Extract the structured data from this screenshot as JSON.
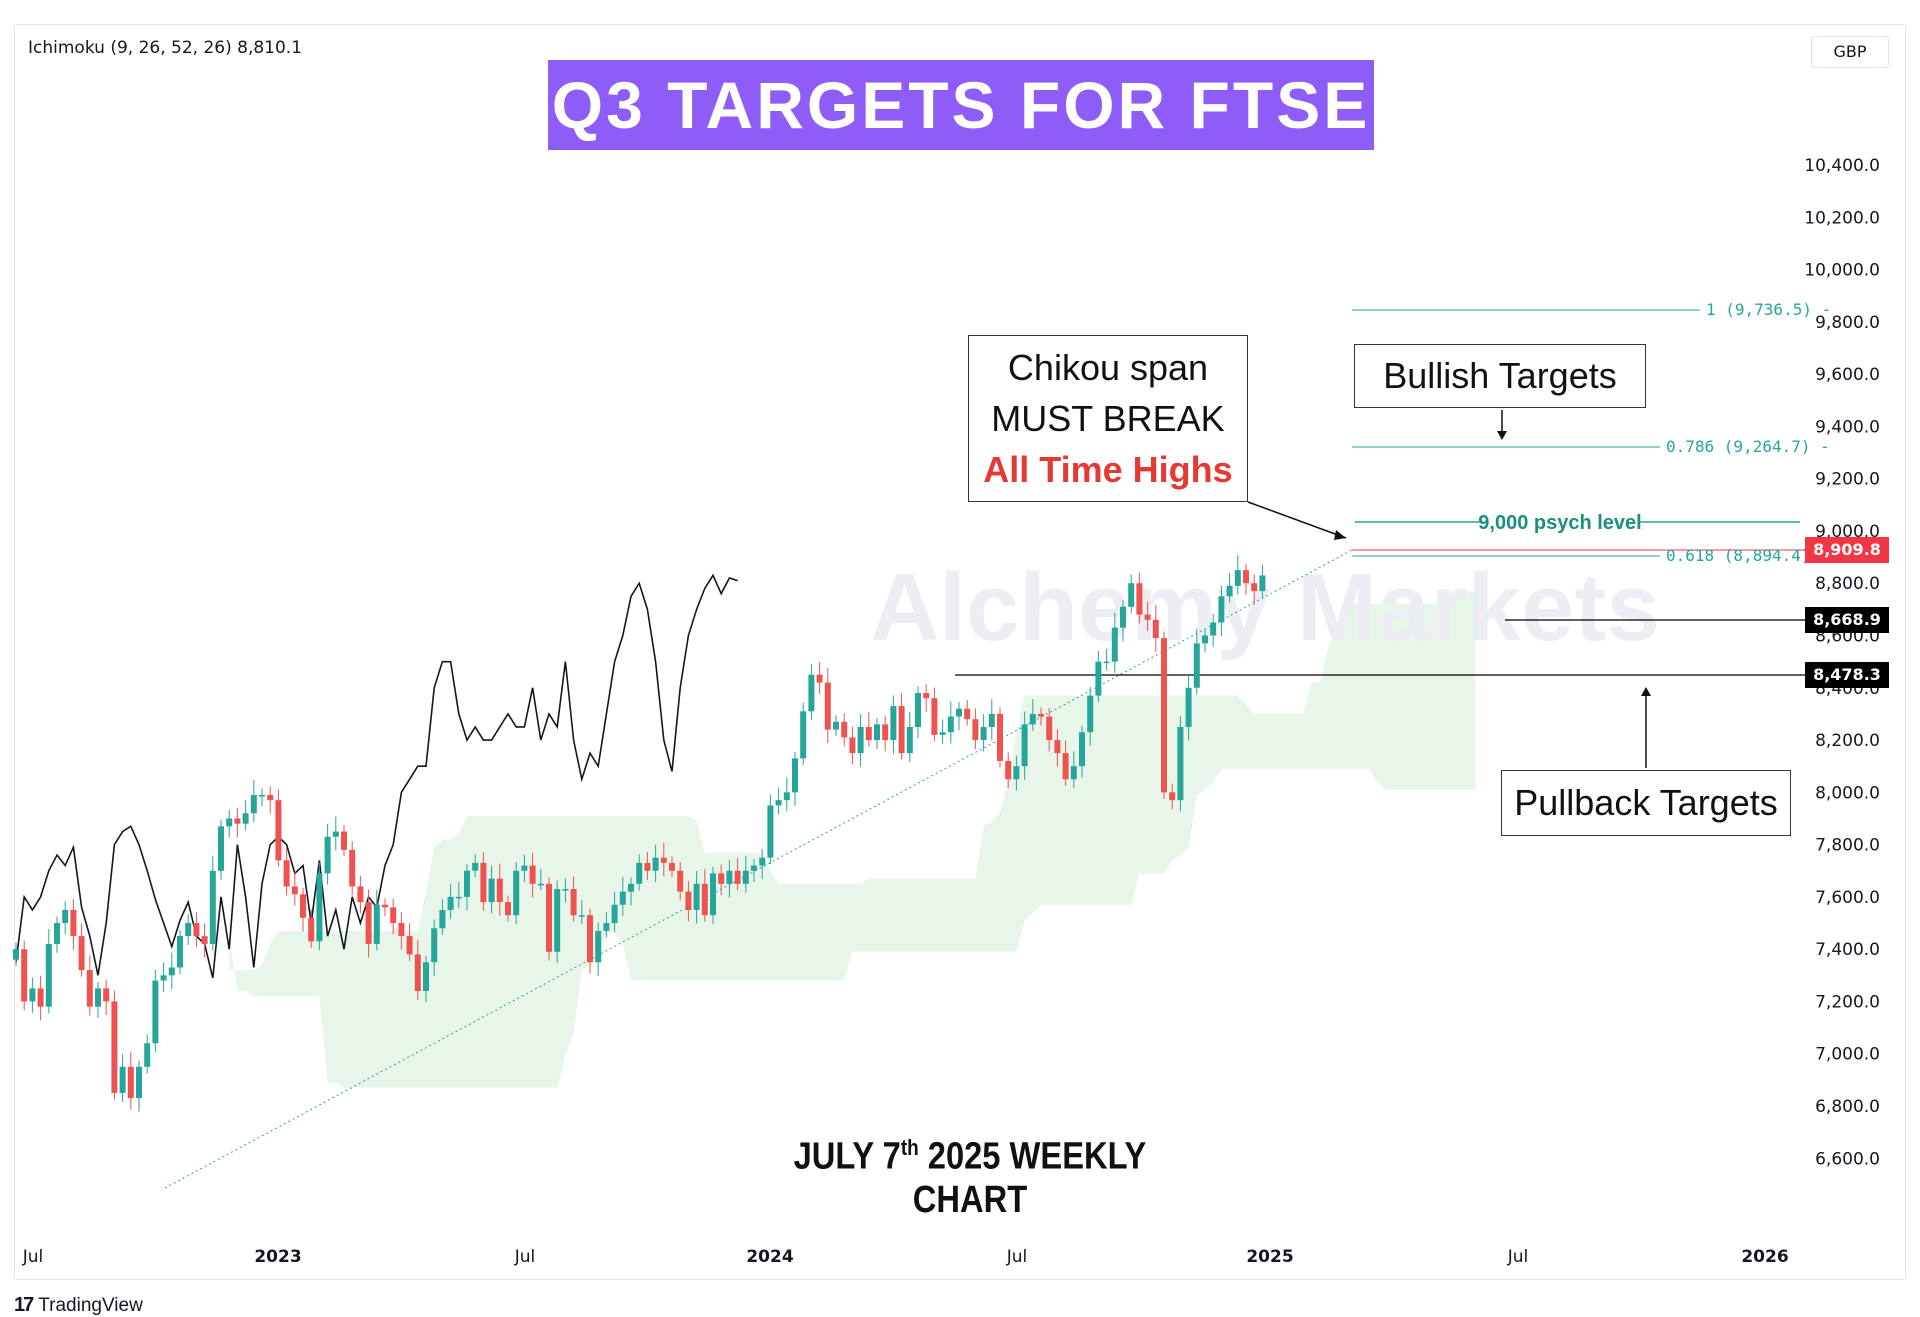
{
  "title": "Q3 TARGETS FOR FTSE",
  "subtitle_main": "JULY 7",
  "subtitle_sup": "th",
  "subtitle_rest": " 2025 WEEKLY CHART",
  "indicator_label": "Ichimoku (9, 26, 52, 26)  8,810.1",
  "currency": "GBP",
  "watermark": "Alchemy Markets",
  "brand": "TradingView",
  "annotations": {
    "chikou_line1": "Chikou span",
    "chikou_line2": "MUST BREAK",
    "chikou_line3": "All Time Highs",
    "bullish": "Bullish Targets",
    "pullback": "Pullback Targets",
    "psych": "9,000 psych level"
  },
  "price_tags": {
    "high": "8,909.8",
    "level1": "8,668.9",
    "level2": "8,478.3"
  },
  "colors": {
    "up": "#26a69a",
    "down": "#ef5350",
    "banner": "#8e5cf7",
    "fib": "#26a69a",
    "cloud_up": "#e8f5e9",
    "cloud_down": "#fdecea"
  },
  "chart_data": {
    "type": "candlestick",
    "instrument": "FTSE",
    "timeframe": "Weekly",
    "ylim": [
      6500,
      10600
    ],
    "y_ticks": [
      "6,600.0",
      "6,800.0",
      "7,000.0",
      "7,200.0",
      "7,400.0",
      "7,600.0",
      "7,800.0",
      "8,000.0",
      "8,200.0",
      "8,400.0",
      "8,600.0",
      "8,800.0",
      "9,000.0",
      "9,200.0",
      "9,400.0",
      "9,600.0",
      "9,800.0",
      "10,000.0",
      "10,200.0",
      "10,400.0"
    ],
    "x_ticks": [
      "Jul",
      "2023",
      "Jul",
      "2024",
      "Jul",
      "2025",
      "Jul",
      "2026"
    ],
    "fib_levels": [
      {
        "label": "1 (9,736.5)",
        "value": 9736.5
      },
      {
        "label": "0.786 (9,264.7)",
        "value": 9264.7
      },
      {
        "label": "0.618 (8,894.4)",
        "value": 8894.4
      }
    ],
    "horizontal_levels": [
      {
        "label": "9,000 psych level",
        "value": 9000
      },
      {
        "label": "8,909.8",
        "value": 8909.8
      },
      {
        "label": "8,668.9",
        "value": 8668.9
      },
      {
        "label": "8,478.3",
        "value": 8478.3
      }
    ],
    "closes": [
      7400,
      7200,
      7250,
      7180,
      7420,
      7500,
      7550,
      7450,
      7320,
      7180,
      7250,
      7200,
      6850,
      6950,
      6830,
      6950,
      7040,
      7280,
      7300,
      7330,
      7450,
      7500,
      7450,
      7420,
      7700,
      7870,
      7900,
      7880,
      7920,
      7990,
      7990,
      7970,
      7740,
      7640,
      7610,
      7520,
      7430,
      7690,
      7830,
      7850,
      7780,
      7640,
      7580,
      7420,
      7570,
      7560,
      7500,
      7450,
      7380,
      7240,
      7350,
      7480,
      7550,
      7600,
      7600,
      7700,
      7730,
      7580,
      7670,
      7580,
      7530,
      7700,
      7720,
      7650,
      7650,
      7390,
      7630,
      7630,
      7530,
      7530,
      7350,
      7470,
      7500,
      7570,
      7620,
      7650,
      7730,
      7700,
      7750,
      7730,
      7700,
      7620,
      7550,
      7650,
      7530,
      7690,
      7650,
      7700,
      7650,
      7700,
      7720,
      7750,
      7950,
      7970,
      8000,
      8130,
      8310,
      8450,
      8420,
      8240,
      8270,
      8210,
      8150,
      8250,
      8200,
      8260,
      8200,
      8330,
      8150,
      8250,
      8380,
      8360,
      8220,
      8230,
      8290,
      8320,
      8280,
      8200,
      8250,
      8300,
      8120,
      8050,
      8100,
      8260,
      8300,
      8290,
      8200,
      8150,
      8050,
      8100,
      8230,
      8370,
      8500,
      8500,
      8630,
      8710,
      8800,
      8680,
      8660,
      8590,
      8000,
      7970,
      8250,
      8400,
      8570,
      8600,
      8650,
      8750,
      8790,
      8850,
      8800,
      8770,
      8830
    ],
    "chikou": [
      7350,
      7600,
      7550,
      7600,
      7700,
      7760,
      7720,
      7790,
      7560,
      7450,
      7300,
      7500,
      7800,
      7850,
      7870,
      7800,
      7700,
      7590,
      7500,
      7410,
      7510,
      7580,
      7450,
      7420,
      7290,
      7600,
      7400,
      7800,
      7600,
      7330,
      7650,
      7800,
      7830,
      7800,
      7690,
      7720,
      7500,
      7740,
      7450,
      7550,
      7400,
      7600,
      7500,
      7600,
      7560,
      7720,
      7800,
      8000,
      8050,
      8100,
      8100,
      8400,
      8500,
      8500,
      8300,
      8200,
      8250,
      8200,
      8200,
      8250,
      8300,
      8250,
      8250,
      8400,
      8200,
      8300,
      8250,
      8500,
      8200,
      8050,
      8150,
      8100,
      8300,
      8500,
      8600,
      8750,
      8800,
      8700,
      8500,
      8200,
      8080,
      8400,
      8600,
      8700,
      8780,
      8830,
      8760,
      8820,
      8810
    ],
    "chikou_note": "Chikou span drawn 26 bars behind price"
  }
}
